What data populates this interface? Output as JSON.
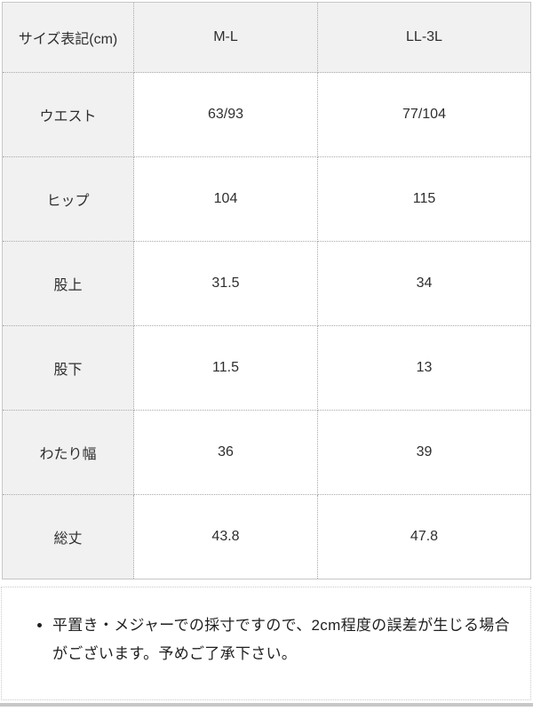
{
  "size_table": {
    "header": [
      "サイズ表記(cm)",
      "M-L",
      "LL-3L"
    ],
    "rows": [
      {
        "label": "ウエスト",
        "values": [
          "63/93",
          "77/104"
        ]
      },
      {
        "label": "ヒップ",
        "values": [
          "104",
          "115"
        ]
      },
      {
        "label": "股上",
        "values": [
          "31.5",
          "34"
        ]
      },
      {
        "label": "股下",
        "values": [
          "11.5",
          "13"
        ]
      },
      {
        "label": "わたり幅",
        "values": [
          "36",
          "39"
        ]
      },
      {
        "label": "総丈",
        "values": [
          "43.8",
          "47.8"
        ]
      }
    ]
  },
  "note": {
    "text": "平置き・メジャーでの採寸ですので、2cm程度の誤差が生じる場合がございます。予めご了承下さい。"
  },
  "colors": {
    "label_bg": "#f0f1f0",
    "cell_border": "#a9a9a9",
    "outer_border": "#c6c6c6",
    "bottom_bar": "#c7c7c7",
    "text": "#2e2e2e"
  }
}
